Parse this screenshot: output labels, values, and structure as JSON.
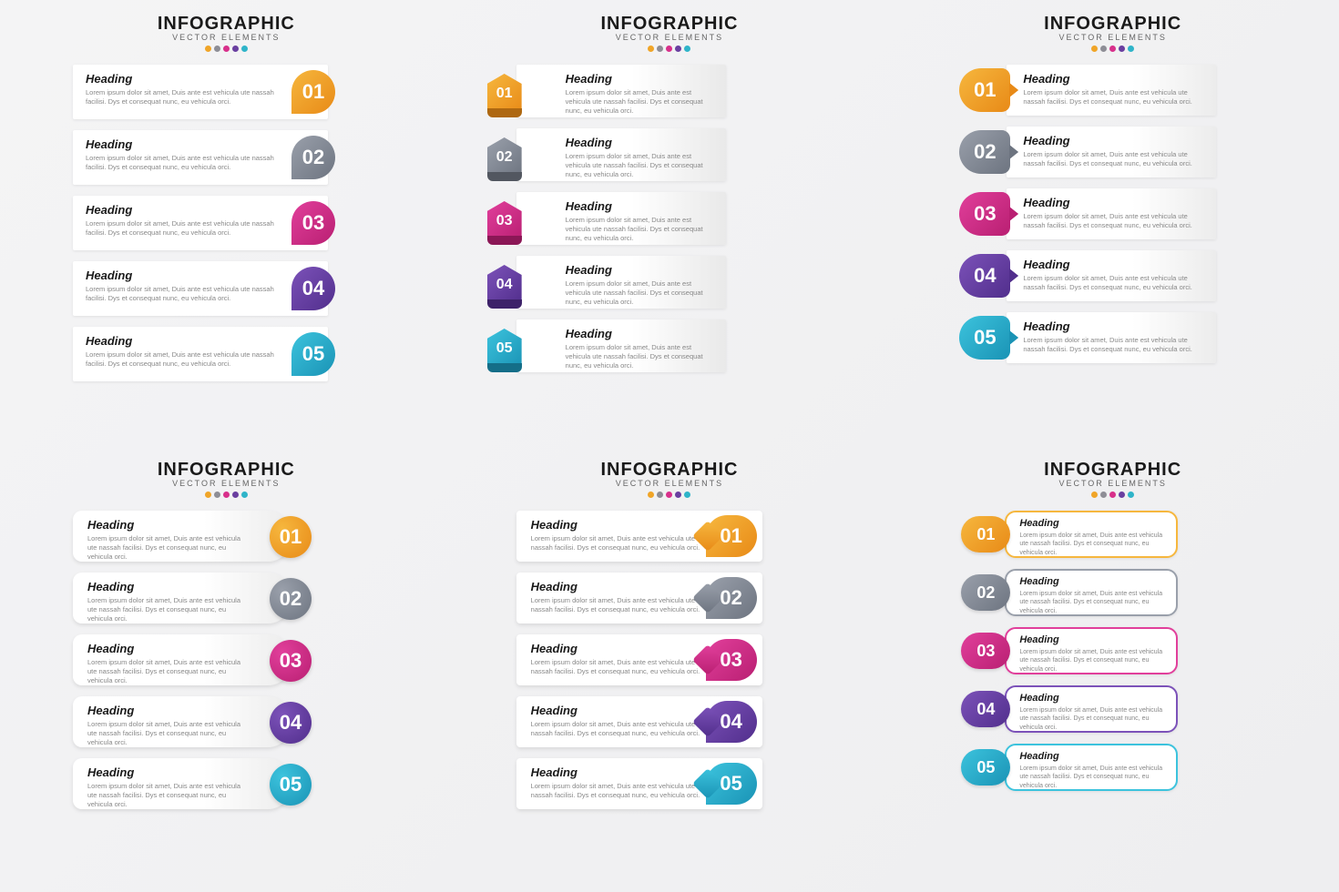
{
  "header": {
    "title": "INFOGRAPHIC",
    "subtitle": "VECTOR ELEMENTS"
  },
  "dot_colors": [
    "#f0a528",
    "#8e8e96",
    "#d8308b",
    "#6a3fa0",
    "#2fb4c9"
  ],
  "colors": [
    {
      "name": "orange",
      "c1": "#f6b73e",
      "c2": "#e88a17"
    },
    {
      "name": "grey",
      "c1": "#9aa0ab",
      "c2": "#6d7480"
    },
    {
      "name": "magenta",
      "c1": "#e13f9b",
      "c2": "#b91f72"
    },
    {
      "name": "purple",
      "c1": "#7c52b9",
      "c2": "#512e8c"
    },
    {
      "name": "teal",
      "c1": "#3cc3dd",
      "c2": "#1a93b5"
    }
  ],
  "items": [
    {
      "num": "01",
      "heading": "Heading",
      "body": "Lorem ipsum dolor sit amet, Duis ante est vehicula ute nassah facilisi. Dys et consequat nunc, eu vehicula orci."
    },
    {
      "num": "02",
      "heading": "Heading",
      "body": "Lorem ipsum dolor sit amet, Duis ante est vehicula ute nassah facilisi. Dys et consequat nunc, eu vehicula orci."
    },
    {
      "num": "03",
      "heading": "Heading",
      "body": "Lorem ipsum dolor sit amet, Duis ante est vehicula ute nassah facilisi. Dys et consequat nunc, eu vehicula orci."
    },
    {
      "num": "04",
      "heading": "Heading",
      "body": "Lorem ipsum dolor sit amet, Duis ante est vehicula ute nassah facilisi. Dys et consequat nunc, eu vehicula orci."
    },
    {
      "num": "05",
      "heading": "Heading",
      "body": "Lorem ipsum dolor sit amet, Duis ante est vehicula ute nassah facilisi. Dys et consequat nunc, eu vehicula orci."
    }
  ],
  "short_body": "Lorem ipsum dolor sit amet, Duis ante est vehicula ute nassah facilisi. Dys et consequat nunc, eu vehicula orci."
}
